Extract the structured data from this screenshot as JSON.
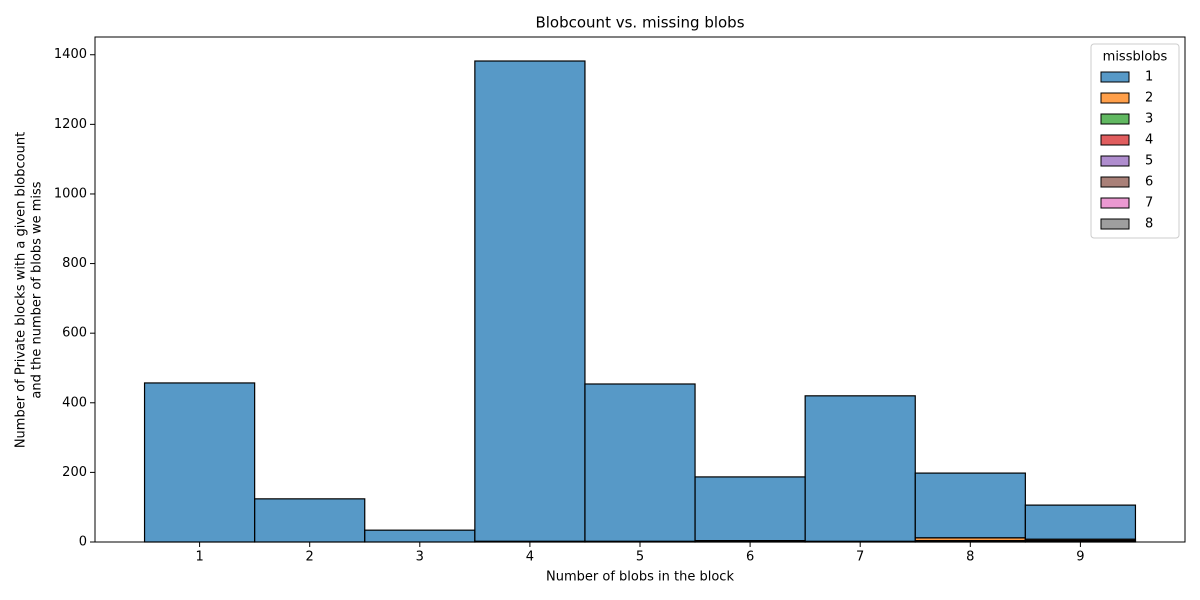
{
  "chart_data": {
    "type": "histogram",
    "title": "Blobcount vs. missing blobs",
    "xlabel": "Number of blobs in the block",
    "ylabel": [
      "Number of Private blocks with a given blobcount",
      "and the number of blobs we miss"
    ],
    "bins": [
      0.5,
      1.5,
      2.5,
      3.5,
      4.5,
      5.5,
      6.5,
      7.5,
      8.5,
      9.5
    ],
    "stacked": true,
    "legend_title": "missblobs",
    "legend": "upper right",
    "series": [
      {
        "name": "1",
        "color": "#1f77b4",
        "values": [
          457,
          124,
          34,
          1380,
          452,
          183,
          418,
          186,
          98
        ]
      },
      {
        "name": "2",
        "color": "#ff7f0e",
        "values": [
          0,
          0,
          0,
          2,
          2,
          3,
          2,
          8,
          4
        ]
      },
      {
        "name": "3",
        "color": "#2ca02c",
        "values": [
          0,
          0,
          0,
          0,
          0,
          1,
          0,
          3,
          2
        ]
      },
      {
        "name": "4",
        "color": "#d62728",
        "values": [
          0,
          0,
          0,
          0,
          0,
          0,
          0,
          1,
          1
        ]
      },
      {
        "name": "5",
        "color": "#9467bd",
        "values": [
          0,
          0,
          0,
          0,
          0,
          0,
          0,
          0,
          0
        ]
      },
      {
        "name": "6",
        "color": "#8c564b",
        "values": [
          0,
          0,
          0,
          0,
          0,
          0,
          0,
          0,
          0
        ]
      },
      {
        "name": "7",
        "color": "#e377c2",
        "values": [
          0,
          0,
          0,
          0,
          0,
          0,
          0,
          0,
          0
        ]
      },
      {
        "name": "8",
        "color": "#7f7f7f",
        "values": [
          0,
          0,
          0,
          0,
          0,
          0,
          0,
          0,
          1
        ]
      }
    ],
    "xlim": [
      0.05,
      9.95
    ],
    "xticks": [
      1,
      2,
      3,
      4,
      5,
      6,
      7,
      8,
      9
    ],
    "ylim": [
      0,
      1451
    ],
    "yticks": [
      0,
      200,
      400,
      600,
      800,
      1000,
      1200,
      1400
    ],
    "opacity": 0.75,
    "grid": false
  }
}
